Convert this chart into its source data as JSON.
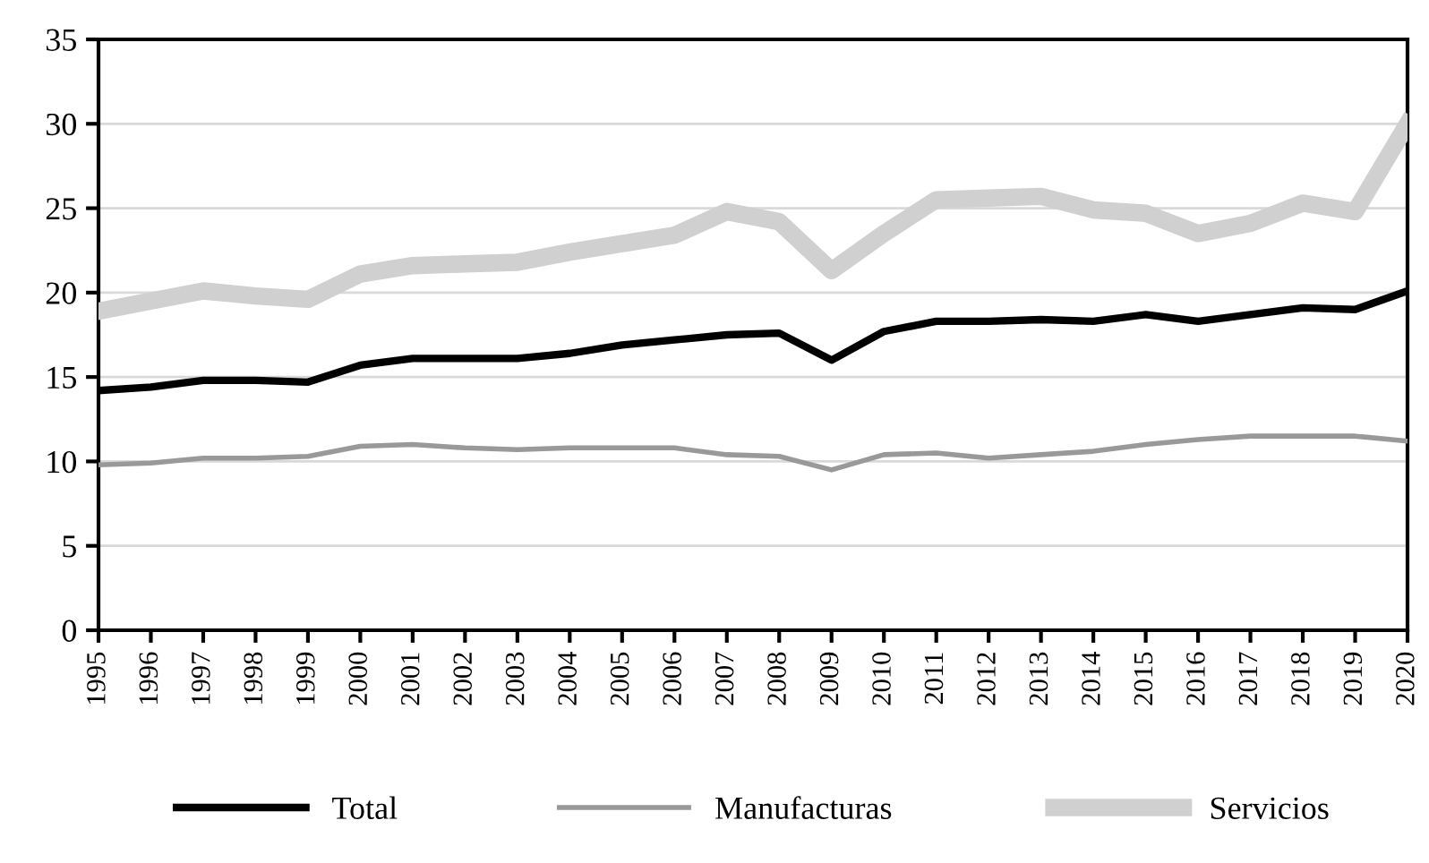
{
  "chart_data": {
    "type": "line",
    "categories": [
      "1995",
      "1996",
      "1997",
      "1998",
      "1999",
      "2000",
      "2001",
      "2002",
      "2003",
      "2004",
      "2005",
      "2006",
      "2007",
      "2008",
      "2009",
      "2010",
      "2011",
      "2012",
      "2013",
      "2014",
      "2015",
      "2016",
      "2017",
      "2018",
      "2019",
      "2020"
    ],
    "series": [
      {
        "name": "Total",
        "color": "#000000",
        "values": [
          14.2,
          14.4,
          14.8,
          14.8,
          14.7,
          15.7,
          16.1,
          16.1,
          16.1,
          16.4,
          16.9,
          17.2,
          17.5,
          17.6,
          16.0,
          17.7,
          18.3,
          18.3,
          18.4,
          18.3,
          18.7,
          18.3,
          18.7,
          19.1,
          19.0,
          20.1
        ]
      },
      {
        "name": "Manufacturas",
        "color": "#999999",
        "values": [
          9.8,
          9.9,
          10.2,
          10.2,
          10.3,
          10.9,
          11.0,
          10.8,
          10.7,
          10.8,
          10.8,
          10.8,
          10.4,
          10.3,
          9.5,
          10.4,
          10.5,
          10.2,
          10.4,
          10.6,
          11.0,
          11.3,
          11.5,
          11.5,
          11.5,
          11.2
        ]
      },
      {
        "name": "Servicios",
        "color": "#d0d0d0",
        "values": [
          18.9,
          19.5,
          20.1,
          19.8,
          19.6,
          21.1,
          21.6,
          21.7,
          21.8,
          22.4,
          22.9,
          23.4,
          24.8,
          24.2,
          21.3,
          23.5,
          25.5,
          25.6,
          25.7,
          24.9,
          24.7,
          23.5,
          24.1,
          25.3,
          24.8,
          30.0
        ]
      }
    ],
    "ylim": [
      0,
      35
    ],
    "yticks": [
      0,
      5,
      10,
      15,
      20,
      25,
      30,
      35
    ],
    "grid": "y",
    "legend": "bottom",
    "marker": "none",
    "line_style": "solid"
  }
}
